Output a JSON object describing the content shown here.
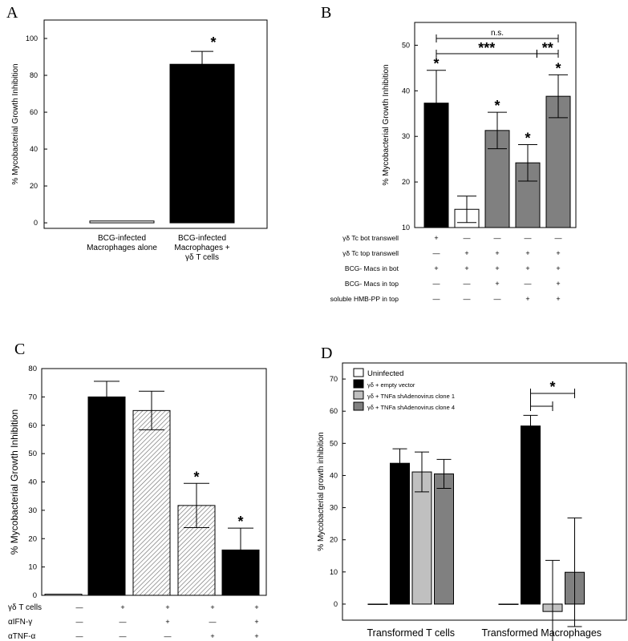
{
  "panels": {
    "A": {
      "letter": "A"
    },
    "B": {
      "letter": "B"
    },
    "C": {
      "letter": "C"
    },
    "D": {
      "letter": "D"
    }
  },
  "chart_data": [
    {
      "panel": "A",
      "type": "bar",
      "ylabel": "% Mycobacterial Growth Inhibition",
      "ylim": [
        -3,
        110
      ],
      "yticks": [
        0,
        20,
        40,
        60,
        80,
        100
      ],
      "categories": [
        [
          "BCG-infected",
          "Macrophages alone"
        ],
        [
          "BCG-infected",
          "Macrophages +",
          "γδ T cells"
        ]
      ],
      "values": [
        1,
        86
      ],
      "errors": [
        0,
        7
      ],
      "colors": [
        "#ffffff",
        "#000000"
      ],
      "annotations": [
        "",
        "*"
      ]
    },
    {
      "panel": "B",
      "type": "bar",
      "ylabel": "% Mycobacterial Growth Inhibition",
      "ylim": [
        10,
        55
      ],
      "yticks": [
        10,
        20,
        30,
        40,
        50
      ],
      "values": [
        37.3,
        14,
        31.3,
        24.2,
        38.8
      ],
      "errors": [
        7.2,
        2.9,
        4,
        4,
        4.7
      ],
      "colors": [
        "#000000",
        "#ffffff",
        "#808080",
        "#808080",
        "#808080"
      ],
      "annotations": [
        "*",
        "",
        "*",
        "*",
        "*"
      ],
      "significance": [
        {
          "from": 0,
          "to": 4,
          "label": "n.s."
        },
        {
          "from": 0,
          "to": 3.3,
          "label": "***"
        },
        {
          "from": 3.3,
          "to": 4,
          "label": "**"
        }
      ],
      "rows": [
        {
          "label": "γδ Tc bot transwell",
          "marks": [
            "+",
            "—",
            "—",
            "—",
            "—"
          ]
        },
        {
          "label": "γδ Tc top transwell",
          "marks": [
            "—",
            "+",
            "+",
            "+",
            "+"
          ]
        },
        {
          "label": "BCG- Macs in bot",
          "marks": [
            "+",
            "+",
            "+",
            "+",
            "+"
          ]
        },
        {
          "label": "BCG- Macs in top",
          "marks": [
            "—",
            "—",
            "+",
            "—",
            "+"
          ]
        },
        {
          "label": "soluble HMB-PP in top",
          "marks": [
            "—",
            "—",
            "—",
            "+",
            "+"
          ]
        }
      ]
    },
    {
      "panel": "C",
      "type": "bar",
      "ylabel": "% Mycobacterial Growth Inhibition",
      "ylim": [
        0,
        80
      ],
      "yticks": [
        0,
        10,
        20,
        30,
        40,
        50,
        60,
        70,
        80
      ],
      "values": [
        0.4,
        70,
        65.2,
        31.7,
        16
      ],
      "errors": [
        0,
        5.5,
        6.8,
        7.8,
        7.7
      ],
      "fills": [
        "white",
        "black",
        "hatch",
        "hatch",
        "black"
      ],
      "annotations": [
        "",
        "",
        "",
        "*",
        "*"
      ],
      "rows": [
        {
          "label": "γδ T cells",
          "marks": [
            "—",
            "+",
            "+",
            "+",
            "+"
          ]
        },
        {
          "label": "αIFN-γ",
          "marks": [
            "—",
            "—",
            "+",
            "—",
            "+"
          ]
        },
        {
          "label": "αTNF-α",
          "marks": [
            "—",
            "—",
            "—",
            "+",
            "+"
          ]
        }
      ]
    },
    {
      "panel": "D",
      "type": "bar",
      "ylabel": "% Mycobacterial growth inhibition",
      "ylim": [
        -5,
        75
      ],
      "yticks": [
        0,
        10,
        20,
        30,
        40,
        50,
        60,
        70
      ],
      "categories": [
        "Transformed  T cells",
        "Transformed  Macrophages"
      ],
      "series": [
        {
          "name": "Uninfected",
          "values": [
            0,
            0
          ],
          "errors": [
            0,
            0
          ],
          "color": "#ffffff"
        },
        {
          "name": "γδ + empty vector",
          "values": [
            43.8,
            55.4
          ],
          "errors": [
            4.5,
            3.3
          ],
          "color": "#000000"
        },
        {
          "name": "γδ + TNFa shAdenovirus clone 1",
          "values": [
            41.1,
            -2.3
          ],
          "errors": [
            6.2,
            15.9
          ],
          "color": "#c0c0c0"
        },
        {
          "name": "γδ + TNFa shAdenovirus clone 4",
          "values": [
            40.5,
            9.9
          ],
          "errors": [
            4.5,
            16.9
          ],
          "color": "#808080"
        }
      ],
      "significance_label": "*"
    }
  ]
}
